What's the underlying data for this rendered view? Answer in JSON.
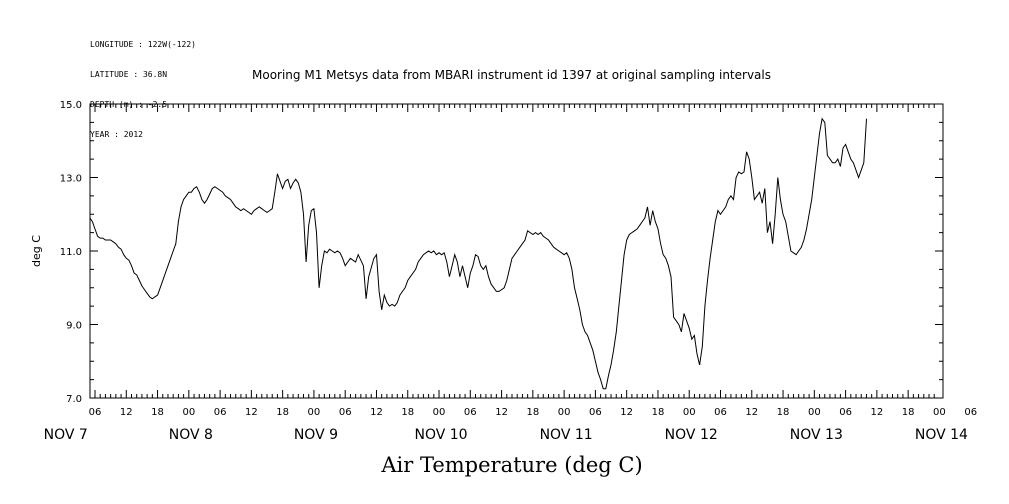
{
  "header": {
    "meta_lines": [
      "LONGITUDE : 122W(-122)",
      "LATITUDE : 36.8N",
      "DEPTH (m) : -2.5",
      "YEAR : 2012"
    ],
    "title": "Mooring M1 Metsys data from MBARI instrument id 1397 at original sampling intervals",
    "bottom_title": "Air Temperature (deg C)"
  },
  "chart_data": {
    "type": "line",
    "title": "Mooring M1 Metsys data from MBARI instrument id 1397 at original sampling intervals",
    "xlabel": "Air Temperature (deg C)",
    "ylabel": "deg C",
    "ylim": [
      7.0,
      15.0
    ],
    "yticks": [
      "7.0",
      "9.0",
      "11.0",
      "13.0",
      "15.0"
    ],
    "x_unit": "hours since NOV 7 00:00 (2012)",
    "xlim": [
      5,
      167
    ],
    "hour_tick_labels": [
      "06",
      "12",
      "18",
      "00",
      "06",
      "12",
      "18",
      "00",
      "06",
      "12",
      "18",
      "00",
      "06",
      "12",
      "18",
      "00",
      "06",
      "12",
      "18",
      "00",
      "06",
      "12",
      "18",
      "00",
      "06",
      "12",
      "18",
      "00",
      "06"
    ],
    "day_labels": [
      "NOV  7",
      "NOV  8",
      "NOV  9",
      "NOV 10",
      "NOV 11",
      "NOV 12",
      "NOV 13",
      "NOV 14"
    ],
    "grid": false,
    "series": [
      {
        "color": "#000000",
        "points": [
          [
            5.0,
            11.9
          ],
          [
            5.5,
            11.8
          ],
          [
            6.0,
            11.6
          ],
          [
            6.5,
            11.4
          ],
          [
            7.0,
            11.35
          ],
          [
            7.5,
            11.35
          ],
          [
            8.0,
            11.3
          ],
          [
            8.5,
            11.3
          ],
          [
            9.0,
            11.3
          ],
          [
            9.5,
            11.25
          ],
          [
            10.0,
            11.2
          ],
          [
            10.5,
            11.1
          ],
          [
            11.0,
            11.05
          ],
          [
            11.5,
            10.9
          ],
          [
            12.0,
            10.8
          ],
          [
            12.5,
            10.75
          ],
          [
            13.0,
            10.6
          ],
          [
            13.5,
            10.4
          ],
          [
            14.0,
            10.35
          ],
          [
            14.5,
            10.2
          ],
          [
            15.0,
            10.05
          ],
          [
            15.5,
            9.95
          ],
          [
            16.0,
            9.85
          ],
          [
            16.5,
            9.75
          ],
          [
            17.0,
            9.7
          ],
          [
            17.5,
            9.75
          ],
          [
            18.0,
            9.8
          ],
          [
            18.5,
            10.0
          ],
          [
            19.0,
            10.2
          ],
          [
            19.5,
            10.4
          ],
          [
            20.0,
            10.6
          ],
          [
            20.5,
            10.8
          ],
          [
            21.0,
            11.0
          ],
          [
            21.5,
            11.2
          ],
          [
            22.0,
            11.8
          ],
          [
            22.5,
            12.2
          ],
          [
            23.0,
            12.4
          ],
          [
            23.5,
            12.5
          ],
          [
            24.0,
            12.6
          ],
          [
            24.5,
            12.6
          ],
          [
            25.0,
            12.7
          ],
          [
            25.5,
            12.75
          ],
          [
            26.0,
            12.6
          ],
          [
            26.5,
            12.4
          ],
          [
            27.0,
            12.3
          ],
          [
            27.5,
            12.4
          ],
          [
            28.0,
            12.55
          ],
          [
            28.5,
            12.7
          ],
          [
            29.0,
            12.75
          ],
          [
            29.5,
            12.7
          ],
          [
            30.0,
            12.65
          ],
          [
            30.5,
            12.6
          ],
          [
            31.0,
            12.5
          ],
          [
            31.5,
            12.45
          ],
          [
            32.0,
            12.4
          ],
          [
            32.5,
            12.3
          ],
          [
            33.0,
            12.2
          ],
          [
            33.5,
            12.15
          ],
          [
            34.0,
            12.1
          ],
          [
            34.5,
            12.15
          ],
          [
            35.0,
            12.1
          ],
          [
            35.5,
            12.05
          ],
          [
            36.0,
            12.0
          ],
          [
            36.5,
            12.1
          ],
          [
            37.0,
            12.15
          ],
          [
            37.5,
            12.2
          ],
          [
            38.0,
            12.15
          ],
          [
            38.5,
            12.1
          ],
          [
            39.0,
            12.05
          ],
          [
            39.5,
            12.1
          ],
          [
            40.0,
            12.15
          ],
          [
            40.5,
            12.6
          ],
          [
            41.0,
            13.1
          ],
          [
            41.5,
            12.9
          ],
          [
            42.0,
            12.7
          ],
          [
            42.5,
            12.9
          ],
          [
            43.0,
            12.95
          ],
          [
            43.5,
            12.7
          ],
          [
            44.0,
            12.85
          ],
          [
            44.5,
            12.95
          ],
          [
            45.0,
            12.85
          ],
          [
            45.5,
            12.6
          ],
          [
            46.0,
            12.0
          ],
          [
            46.5,
            10.7
          ],
          [
            47.0,
            11.7
          ],
          [
            47.5,
            12.1
          ],
          [
            48.0,
            12.15
          ],
          [
            48.5,
            11.5
          ],
          [
            49.0,
            10.0
          ],
          [
            49.5,
            10.6
          ],
          [
            50.0,
            11.0
          ],
          [
            50.5,
            10.95
          ],
          [
            51.0,
            11.05
          ],
          [
            51.5,
            11.0
          ],
          [
            52.0,
            10.95
          ],
          [
            52.5,
            11.0
          ],
          [
            53.0,
            10.95
          ],
          [
            53.5,
            10.8
          ],
          [
            54.0,
            10.6
          ],
          [
            54.5,
            10.7
          ],
          [
            55.0,
            10.8
          ],
          [
            55.5,
            10.75
          ],
          [
            56.0,
            10.7
          ],
          [
            56.5,
            10.9
          ],
          [
            57.0,
            10.75
          ],
          [
            57.5,
            10.6
          ],
          [
            58.0,
            9.7
          ],
          [
            58.5,
            10.3
          ],
          [
            59.0,
            10.55
          ],
          [
            59.5,
            10.8
          ],
          [
            60.0,
            10.9
          ],
          [
            60.5,
            9.9
          ],
          [
            61.0,
            9.4
          ],
          [
            61.5,
            9.8
          ],
          [
            62.0,
            9.6
          ],
          [
            62.5,
            9.5
          ],
          [
            63.0,
            9.55
          ],
          [
            63.5,
            9.5
          ],
          [
            64.0,
            9.6
          ],
          [
            64.5,
            9.8
          ],
          [
            65.0,
            9.9
          ],
          [
            65.5,
            10.0
          ],
          [
            66.0,
            10.2
          ],
          [
            66.5,
            10.3
          ],
          [
            67.0,
            10.4
          ],
          [
            67.5,
            10.5
          ],
          [
            68.0,
            10.7
          ],
          [
            68.5,
            10.8
          ],
          [
            69.0,
            10.9
          ],
          [
            69.5,
            10.95
          ],
          [
            70.0,
            11.0
          ],
          [
            70.5,
            10.95
          ],
          [
            71.0,
            11.0
          ],
          [
            71.5,
            10.9
          ],
          [
            72.0,
            10.95
          ],
          [
            72.5,
            10.9
          ],
          [
            73.0,
            10.95
          ],
          [
            73.5,
            10.7
          ],
          [
            74.0,
            10.3
          ],
          [
            74.5,
            10.6
          ],
          [
            75.0,
            10.9
          ],
          [
            75.5,
            10.7
          ],
          [
            76.0,
            10.3
          ],
          [
            76.5,
            10.6
          ],
          [
            77.0,
            10.3
          ],
          [
            77.5,
            10.0
          ],
          [
            78.0,
            10.4
          ],
          [
            78.5,
            10.6
          ],
          [
            79.0,
            10.9
          ],
          [
            79.5,
            10.85
          ],
          [
            80.0,
            10.6
          ],
          [
            80.5,
            10.5
          ],
          [
            81.0,
            10.6
          ],
          [
            81.5,
            10.3
          ],
          [
            82.0,
            10.1
          ],
          [
            82.5,
            10.0
          ],
          [
            83.0,
            9.9
          ],
          [
            83.5,
            9.9
          ],
          [
            84.0,
            9.95
          ],
          [
            84.5,
            10.0
          ],
          [
            85.0,
            10.2
          ],
          [
            85.5,
            10.5
          ],
          [
            86.0,
            10.8
          ],
          [
            86.5,
            10.9
          ],
          [
            87.0,
            11.0
          ],
          [
            87.5,
            11.1
          ],
          [
            88.0,
            11.2
          ],
          [
            88.5,
            11.3
          ],
          [
            89.0,
            11.55
          ],
          [
            89.5,
            11.5
          ],
          [
            90.0,
            11.45
          ],
          [
            90.5,
            11.5
          ],
          [
            91.0,
            11.45
          ],
          [
            91.5,
            11.5
          ],
          [
            92.0,
            11.4
          ],
          [
            92.5,
            11.35
          ],
          [
            93.0,
            11.3
          ],
          [
            93.5,
            11.2
          ],
          [
            94.0,
            11.1
          ],
          [
            94.5,
            11.05
          ],
          [
            95.0,
            11.0
          ],
          [
            95.5,
            10.95
          ],
          [
            96.0,
            10.9
          ],
          [
            96.5,
            10.95
          ],
          [
            97.0,
            10.8
          ],
          [
            97.5,
            10.5
          ],
          [
            98.0,
            10.0
          ],
          [
            98.5,
            9.7
          ],
          [
            99.0,
            9.4
          ],
          [
            99.5,
            9.0
          ],
          [
            100.0,
            8.8
          ],
          [
            100.5,
            8.7
          ],
          [
            101.0,
            8.5
          ],
          [
            101.5,
            8.3
          ],
          [
            102.0,
            8.0
          ],
          [
            102.5,
            7.7
          ],
          [
            103.0,
            7.5
          ],
          [
            103.5,
            7.25
          ],
          [
            104.0,
            7.25
          ],
          [
            104.5,
            7.6
          ],
          [
            105.0,
            7.9
          ],
          [
            105.5,
            8.3
          ],
          [
            106.0,
            8.8
          ],
          [
            106.5,
            9.5
          ],
          [
            107.0,
            10.2
          ],
          [
            107.5,
            10.9
          ],
          [
            108.0,
            11.3
          ],
          [
            108.5,
            11.45
          ],
          [
            109.0,
            11.5
          ],
          [
            109.5,
            11.55
          ],
          [
            110.0,
            11.6
          ],
          [
            110.5,
            11.7
          ],
          [
            111.0,
            11.8
          ],
          [
            111.5,
            11.9
          ],
          [
            112.0,
            12.2
          ],
          [
            112.5,
            11.7
          ],
          [
            113.0,
            12.1
          ],
          [
            113.5,
            11.8
          ],
          [
            114.0,
            11.6
          ],
          [
            114.5,
            11.2
          ],
          [
            115.0,
            10.9
          ],
          [
            115.5,
            10.8
          ],
          [
            116.0,
            10.6
          ],
          [
            116.5,
            10.3
          ],
          [
            117.0,
            9.2
          ],
          [
            117.5,
            9.1
          ],
          [
            118.0,
            9.0
          ],
          [
            118.5,
            8.8
          ],
          [
            119.0,
            9.3
          ],
          [
            119.5,
            9.1
          ],
          [
            120.0,
            8.9
          ],
          [
            120.5,
            8.6
          ],
          [
            121.0,
            8.7
          ],
          [
            121.5,
            8.2
          ],
          [
            122.0,
            7.9
          ],
          [
            122.5,
            8.4
          ],
          [
            123.0,
            9.5
          ],
          [
            123.5,
            10.2
          ],
          [
            124.0,
            10.8
          ],
          [
            124.5,
            11.3
          ],
          [
            125.0,
            11.8
          ],
          [
            125.5,
            12.1
          ],
          [
            126.0,
            12.0
          ],
          [
            126.5,
            12.1
          ],
          [
            127.0,
            12.2
          ],
          [
            127.5,
            12.4
          ],
          [
            128.0,
            12.5
          ],
          [
            128.5,
            12.4
          ],
          [
            129.0,
            13.0
          ],
          [
            129.5,
            13.15
          ],
          [
            130.0,
            13.1
          ],
          [
            130.5,
            13.15
          ],
          [
            131.0,
            13.7
          ],
          [
            131.5,
            13.5
          ],
          [
            132.0,
            13.0
          ],
          [
            132.5,
            12.4
          ],
          [
            133.0,
            12.5
          ],
          [
            133.5,
            12.6
          ],
          [
            134.0,
            12.3
          ],
          [
            134.5,
            12.7
          ],
          [
            135.0,
            11.5
          ],
          [
            135.5,
            11.8
          ],
          [
            136.0,
            11.2
          ],
          [
            136.5,
            12.0
          ],
          [
            137.0,
            13.0
          ],
          [
            137.5,
            12.4
          ],
          [
            138.0,
            12.0
          ],
          [
            138.5,
            11.8
          ],
          [
            139.0,
            11.4
          ],
          [
            139.5,
            11.0
          ],
          [
            140.0,
            10.95
          ],
          [
            140.5,
            10.9
          ],
          [
            141.0,
            11.0
          ],
          [
            141.5,
            11.1
          ],
          [
            142.0,
            11.3
          ],
          [
            142.5,
            11.6
          ],
          [
            143.0,
            12.0
          ],
          [
            143.5,
            12.4
          ],
          [
            144.0,
            13.0
          ],
          [
            144.5,
            13.6
          ],
          [
            145.0,
            14.2
          ],
          [
            145.5,
            14.6
          ],
          [
            146.0,
            14.5
          ],
          [
            146.5,
            13.6
          ],
          [
            147.0,
            13.5
          ],
          [
            147.5,
            13.4
          ],
          [
            148.0,
            13.4
          ],
          [
            148.5,
            13.5
          ],
          [
            149.0,
            13.3
          ],
          [
            149.5,
            13.8
          ],
          [
            150.0,
            13.9
          ],
          [
            150.5,
            13.7
          ],
          [
            151.0,
            13.5
          ],
          [
            151.5,
            13.4
          ],
          [
            152.0,
            13.2
          ],
          [
            152.5,
            13.0
          ],
          [
            153.0,
            13.2
          ],
          [
            153.5,
            13.4
          ],
          [
            154.0,
            14.6
          ]
        ]
      }
    ]
  }
}
